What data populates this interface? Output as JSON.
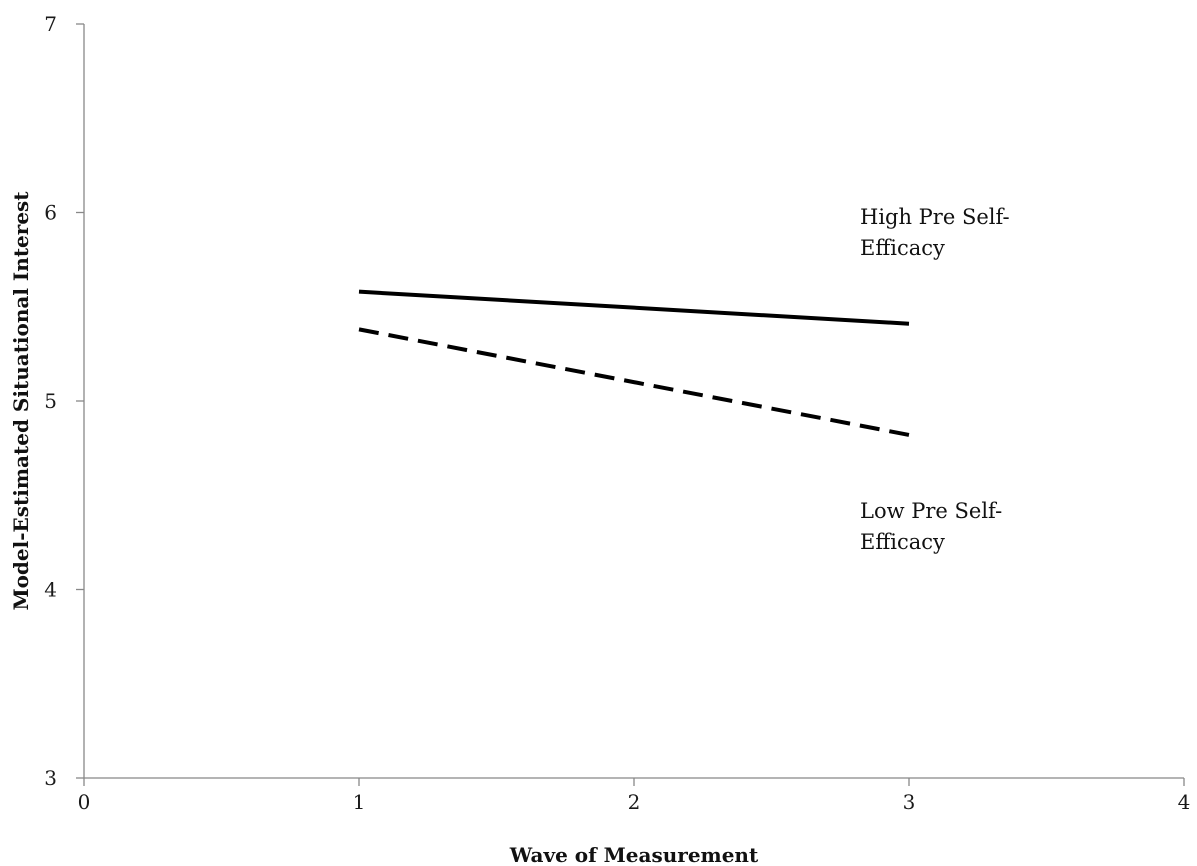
{
  "chart_data": {
    "type": "line",
    "title": "",
    "xlabel": "Wave of Measurement",
    "ylabel": "Model-Estimated Situational Interest",
    "xlim": [
      0,
      4
    ],
    "ylim": [
      3,
      7
    ],
    "xticks": [
      0,
      1,
      2,
      3,
      4
    ],
    "yticks": [
      3,
      4,
      5,
      6,
      7
    ],
    "grid": false,
    "legend": "none",
    "series": [
      {
        "x": [
          1,
          3
        ],
        "y": [
          5.58,
          5.41
        ],
        "style": "solid",
        "color": "#000000",
        "label_lines": [
          "High Pre Self-",
          "Efficacy"
        ]
      },
      {
        "x": [
          1,
          3
        ],
        "y": [
          5.38,
          4.82
        ],
        "style": "dashed",
        "color": "#000000",
        "label_lines": [
          "Low Pre Self-",
          "Efficacy"
        ]
      }
    ]
  }
}
